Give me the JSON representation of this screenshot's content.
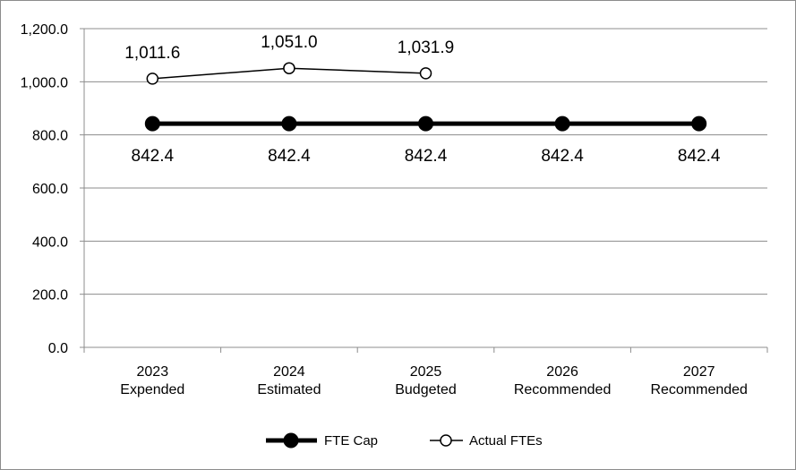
{
  "chart_data": {
    "type": "line",
    "title": "",
    "xlabel": "",
    "ylabel": "",
    "categories": [
      [
        "2023",
        "Expended"
      ],
      [
        "2024",
        "Estimated"
      ],
      [
        "2025",
        "Budgeted"
      ],
      [
        "2026",
        "Recommended"
      ],
      [
        "2027",
        "Recommended"
      ]
    ],
    "ylim": [
      0,
      1200
    ],
    "yticks": [
      0,
      200,
      400,
      600,
      800,
      1000,
      1200
    ],
    "ytick_labels": [
      "0.0",
      "200.0",
      "400.0",
      "600.0",
      "800.0",
      "1,000.0",
      "1,200.0"
    ],
    "grid": true,
    "legend_position": "bottom",
    "series": [
      {
        "name": "FTE Cap",
        "values": [
          842.4,
          842.4,
          842.4,
          842.4,
          842.4
        ],
        "labels": [
          "842.4",
          "842.4",
          "842.4",
          "842.4",
          "842.4"
        ],
        "color": "#000000",
        "marker": "filled-circle"
      },
      {
        "name": "Actual FTEs",
        "values": [
          1011.6,
          1051.0,
          1031.9,
          null,
          null
        ],
        "labels": [
          "1,011.6",
          "1,051.0",
          "1,031.9",
          null,
          null
        ],
        "color": "#000000",
        "marker": "open-circle"
      }
    ]
  }
}
